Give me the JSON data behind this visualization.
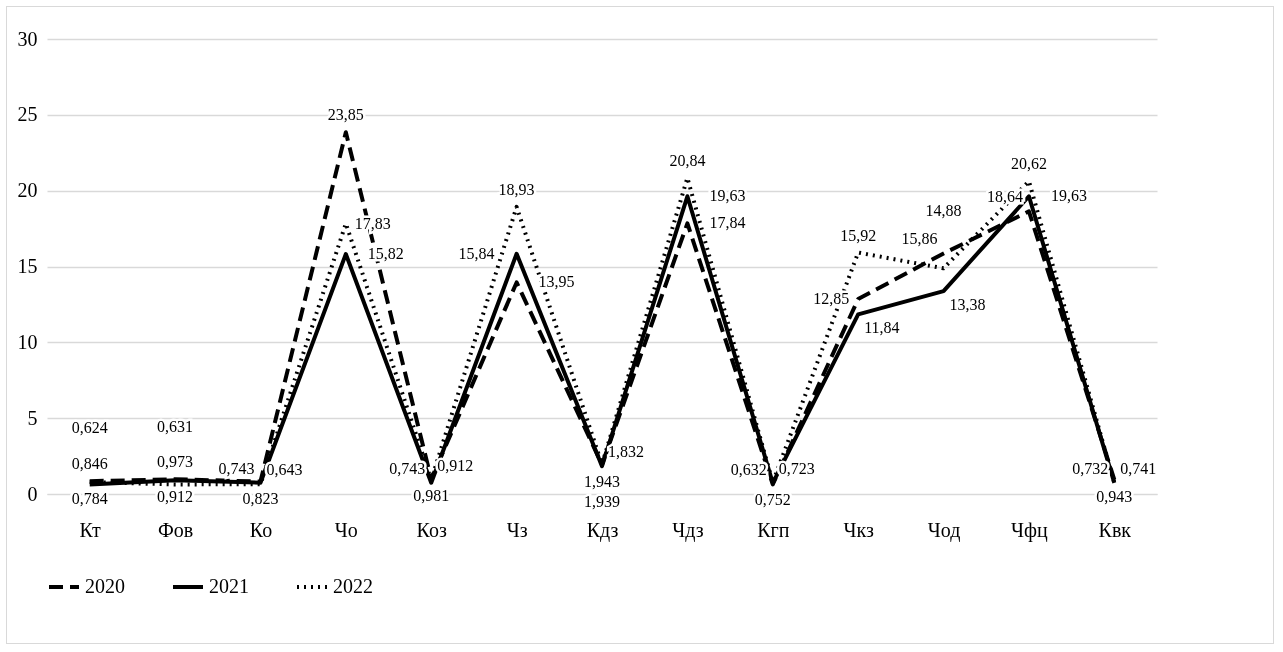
{
  "chart_data": {
    "type": "line",
    "categories": [
      "Кт",
      "Фов",
      "Ко",
      "Чо",
      "Коз",
      "Чз",
      "Кдз",
      "Чдз",
      "Кгп",
      "Чкз",
      "Чод",
      "Чфц",
      "Квк"
    ],
    "series": [
      {
        "name": "2020",
        "color": "#000000",
        "line_style": "dashed",
        "values": [
          0.846,
          0.973,
          0.823,
          23.85,
          0.981,
          13.95,
          1.939,
          17.84,
          0.632,
          12.85,
          15.86,
          18.64,
          0.943
        ],
        "value_labels": [
          "0,846",
          "0,973",
          "0,823",
          "23,85",
          "0,981",
          "13,95",
          "1,939",
          "17,84",
          "0,632",
          "12,85",
          "15,86",
          "18,64",
          "0,943"
        ]
      },
      {
        "name": "2021",
        "color": "#000000",
        "line_style": "solid",
        "values": [
          0.624,
          0.912,
          0.743,
          15.82,
          0.743,
          15.84,
          1.832,
          19.63,
          0.723,
          11.84,
          13.38,
          19.63,
          0.732
        ],
        "value_labels": [
          "0,624",
          "0,912",
          "0,743",
          "15,82",
          "0,743",
          "15,84",
          "1,832",
          "19,63",
          "0,723",
          "11,84",
          "13,38",
          "19,63",
          "0,732"
        ]
      },
      {
        "name": "2022",
        "color": "#000000",
        "line_style": "dotted",
        "values": [
          0.784,
          0.631,
          0.643,
          17.83,
          0.912,
          18.93,
          1.943,
          20.84,
          0.752,
          15.92,
          14.88,
          20.62,
          0.741
        ],
        "value_labels": [
          "0,784",
          "0,631",
          "0,643",
          "17,83",
          "0,912",
          "18,93",
          "1,943",
          "20,84",
          "0,752",
          "15,92",
          "14,88",
          "20,62",
          "0,741"
        ]
      }
    ],
    "ylim": [
      0,
      30
    ],
    "yticks": [
      0,
      5,
      10,
      15,
      20,
      25,
      30
    ],
    "grid": "y",
    "legend": "bottom"
  }
}
